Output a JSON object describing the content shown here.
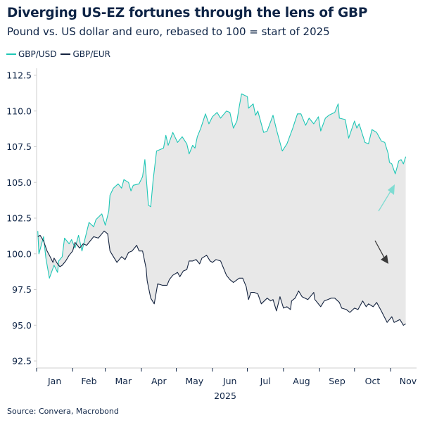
{
  "header": {
    "title": "Diverging US-EZ fortunes through the lens of GBP",
    "subtitle": "Pound vs. US dollar and euro, rebased to 100 = start of 2025"
  },
  "source": "Source: Convera, Macrobond",
  "colors": {
    "gbpusd": "#1fc7b6",
    "gbpeur": "#14233f",
    "fill": "#e8e8e8",
    "text": "#0e2446"
  },
  "chart_data": {
    "type": "line",
    "title": "Diverging US-EZ fortunes through the lens of GBP",
    "subtitle": "Pound vs. US dollar and euro, rebased to 100 = start of 2025",
    "xlabel": "2025",
    "ylabel": "",
    "ylim": [
      92.5,
      112.5
    ],
    "yticks": [
      "92.5",
      "95.0",
      "97.5",
      "100.0",
      "102.5",
      "105.0",
      "107.5",
      "110.0",
      "112.5"
    ],
    "xticks": [
      "Jan",
      "Feb",
      "Mar",
      "Apr",
      "May",
      "Jun",
      "Jul",
      "Aug",
      "Sep",
      "Oct",
      "Nov"
    ],
    "grid": false,
    "legend": "top-left",
    "shaded_between_series": true,
    "annotations": [
      "arrow-up (GBP/USD)",
      "arrow-down (GBP/EUR)"
    ],
    "series": [
      {
        "name": "GBP/USD",
        "color": "#1fc7b6",
        "points": [
          [
            "2025-01-02",
            101.6
          ],
          [
            "2025-01-03",
            100.0
          ],
          [
            "2025-01-07",
            101.2
          ],
          [
            "2025-01-09",
            99.7
          ],
          [
            "2025-01-12",
            98.3
          ],
          [
            "2025-01-16",
            99.2
          ],
          [
            "2025-01-19",
            98.7
          ],
          [
            "2025-01-20",
            99.5
          ],
          [
            "2025-01-23",
            99.8
          ],
          [
            "2025-01-25",
            101.1
          ],
          [
            "2025-01-29",
            100.7
          ],
          [
            "2025-01-31",
            101.0
          ],
          [
            "2025-02-03",
            100.4
          ],
          [
            "2025-02-06",
            101.3
          ],
          [
            "2025-02-09",
            100.2
          ],
          [
            "2025-02-15",
            102.2
          ],
          [
            "2025-02-19",
            101.9
          ],
          [
            "2025-02-21",
            102.4
          ],
          [
            "2025-02-26",
            102.8
          ],
          [
            "2025-03-01",
            102.0
          ],
          [
            "2025-03-04",
            103.0
          ],
          [
            "2025-03-05",
            104.1
          ],
          [
            "2025-03-08",
            104.6
          ],
          [
            "2025-03-12",
            104.9
          ],
          [
            "2025-03-15",
            104.6
          ],
          [
            "2025-03-17",
            105.2
          ],
          [
            "2025-03-21",
            105.0
          ],
          [
            "2025-03-23",
            104.4
          ],
          [
            "2025-03-25",
            104.8
          ],
          [
            "2025-03-30",
            104.9
          ],
          [
            "2025-04-02",
            105.4
          ],
          [
            "2025-04-04",
            106.6
          ],
          [
            "2025-04-07",
            103.4
          ],
          [
            "2025-04-09",
            103.3
          ],
          [
            "2025-04-11",
            105.1
          ],
          [
            "2025-04-14",
            107.2
          ],
          [
            "2025-04-20",
            107.4
          ],
          [
            "2025-04-22",
            108.3
          ],
          [
            "2025-04-24",
            107.6
          ],
          [
            "2025-04-28",
            108.5
          ],
          [
            "2025-05-02",
            107.8
          ],
          [
            "2025-05-06",
            108.2
          ],
          [
            "2025-05-10",
            107.7
          ],
          [
            "2025-05-12",
            107.0
          ],
          [
            "2025-05-15",
            107.6
          ],
          [
            "2025-05-17",
            107.4
          ],
          [
            "2025-05-19",
            108.2
          ],
          [
            "2025-05-22",
            108.8
          ],
          [
            "2025-05-26",
            109.8
          ],
          [
            "2025-05-29",
            109.1
          ],
          [
            "2025-06-01",
            109.6
          ],
          [
            "2025-06-05",
            109.9
          ],
          [
            "2025-06-08",
            109.5
          ],
          [
            "2025-06-13",
            110.0
          ],
          [
            "2025-06-16",
            109.9
          ],
          [
            "2025-06-19",
            108.8
          ],
          [
            "2025-06-22",
            109.3
          ],
          [
            "2025-06-24",
            110.3
          ],
          [
            "2025-06-26",
            111.2
          ],
          [
            "2025-07-01",
            111.0
          ],
          [
            "2025-07-02",
            110.2
          ],
          [
            "2025-07-06",
            110.5
          ],
          [
            "2025-07-08",
            109.7
          ],
          [
            "2025-07-10",
            110.0
          ],
          [
            "2025-07-15",
            108.5
          ],
          [
            "2025-07-18",
            108.6
          ],
          [
            "2025-07-23",
            109.7
          ],
          [
            "2025-07-26",
            108.7
          ],
          [
            "2025-07-31",
            107.2
          ],
          [
            "2025-08-04",
            107.7
          ],
          [
            "2025-08-09",
            108.8
          ],
          [
            "2025-08-13",
            109.8
          ],
          [
            "2025-08-16",
            109.8
          ],
          [
            "2025-08-20",
            109.0
          ],
          [
            "2025-08-23",
            109.5
          ],
          [
            "2025-08-27",
            109.1
          ],
          [
            "2025-08-31",
            109.6
          ],
          [
            "2025-09-02",
            108.6
          ],
          [
            "2025-09-06",
            109.5
          ],
          [
            "2025-09-09",
            109.7
          ],
          [
            "2025-09-14",
            109.9
          ],
          [
            "2025-09-17",
            110.5
          ],
          [
            "2025-09-18",
            109.5
          ],
          [
            "2025-09-23",
            109.4
          ],
          [
            "2025-09-26",
            108.1
          ],
          [
            "2025-10-01",
            109.3
          ],
          [
            "2025-10-03",
            108.8
          ],
          [
            "2025-10-05",
            109.1
          ],
          [
            "2025-10-10",
            107.8
          ],
          [
            "2025-10-13",
            107.7
          ],
          [
            "2025-10-16",
            108.7
          ],
          [
            "2025-10-20",
            108.5
          ],
          [
            "2025-10-24",
            107.9
          ],
          [
            "2025-10-27",
            107.8
          ],
          [
            "2025-10-30",
            107.0
          ],
          [
            "2025-10-31",
            106.4
          ],
          [
            "2025-11-02",
            106.3
          ],
          [
            "2025-11-05",
            105.6
          ],
          [
            "2025-11-08",
            106.5
          ],
          [
            "2025-11-10",
            106.6
          ],
          [
            "2025-11-12",
            106.3
          ],
          [
            "2025-11-14",
            106.8
          ]
        ]
      },
      {
        "name": "GBP/EUR",
        "color": "#14233f",
        "points": [
          [
            "2025-01-02",
            101.2
          ],
          [
            "2025-01-04",
            101.3
          ],
          [
            "2025-01-07",
            100.9
          ],
          [
            "2025-01-10",
            100.2
          ],
          [
            "2025-01-12",
            99.9
          ],
          [
            "2025-01-15",
            99.4
          ],
          [
            "2025-01-16",
            99.7
          ],
          [
            "2025-01-19",
            99.3
          ],
          [
            "2025-01-21",
            99.1
          ],
          [
            "2025-01-23",
            99.2
          ],
          [
            "2025-01-26",
            99.5
          ],
          [
            "2025-01-29",
            99.9
          ],
          [
            "2025-02-01",
            100.2
          ],
          [
            "2025-02-03",
            100.8
          ],
          [
            "2025-02-07",
            100.4
          ],
          [
            "2025-02-10",
            100.7
          ],
          [
            "2025-02-13",
            100.6
          ],
          [
            "2025-02-19",
            101.2
          ],
          [
            "2025-02-23",
            101.1
          ],
          [
            "2025-02-28",
            101.6
          ],
          [
            "2025-03-03",
            101.4
          ],
          [
            "2025-03-05",
            100.2
          ],
          [
            "2025-03-08",
            99.8
          ],
          [
            "2025-03-11",
            99.4
          ],
          [
            "2025-03-15",
            99.8
          ],
          [
            "2025-03-18",
            99.6
          ],
          [
            "2025-03-21",
            100.1
          ],
          [
            "2025-03-24",
            100.2
          ],
          [
            "2025-03-26",
            100.4
          ],
          [
            "2025-03-28",
            100.6
          ],
          [
            "2025-03-30",
            100.2
          ],
          [
            "2025-04-02",
            100.2
          ],
          [
            "2025-04-05",
            99.0
          ],
          [
            "2025-04-06",
            98.1
          ],
          [
            "2025-04-09",
            96.9
          ],
          [
            "2025-04-12",
            96.5
          ],
          [
            "2025-04-15",
            97.9
          ],
          [
            "2025-04-19",
            97.8
          ],
          [
            "2025-04-23",
            97.8
          ],
          [
            "2025-04-25",
            98.2
          ],
          [
            "2025-04-28",
            98.5
          ],
          [
            "2025-05-02",
            98.7
          ],
          [
            "2025-05-04",
            98.4
          ],
          [
            "2025-05-07",
            98.8
          ],
          [
            "2025-05-10",
            98.9
          ],
          [
            "2025-05-12",
            99.5
          ],
          [
            "2025-05-15",
            99.5
          ],
          [
            "2025-05-18",
            99.6
          ],
          [
            "2025-05-21",
            99.3
          ],
          [
            "2025-05-23",
            99.7
          ],
          [
            "2025-05-27",
            99.9
          ],
          [
            "2025-05-30",
            99.5
          ],
          [
            "2025-06-01",
            99.4
          ],
          [
            "2025-06-04",
            99.6
          ],
          [
            "2025-06-08",
            99.5
          ],
          [
            "2025-06-13",
            98.5
          ],
          [
            "2025-06-16",
            98.2
          ],
          [
            "2025-06-19",
            98.0
          ],
          [
            "2025-06-24",
            98.3
          ],
          [
            "2025-06-27",
            98.3
          ],
          [
            "2025-06-30",
            97.7
          ],
          [
            "2025-07-02",
            96.8
          ],
          [
            "2025-07-04",
            97.3
          ],
          [
            "2025-07-07",
            97.3
          ],
          [
            "2025-07-10",
            97.2
          ],
          [
            "2025-07-13",
            96.5
          ],
          [
            "2025-07-18",
            96.9
          ],
          [
            "2025-07-21",
            96.7
          ],
          [
            "2025-07-23",
            96.8
          ],
          [
            "2025-07-26",
            96.0
          ],
          [
            "2025-07-29",
            97.0
          ],
          [
            "2025-08-01",
            96.2
          ],
          [
            "2025-08-04",
            96.3
          ],
          [
            "2025-08-07",
            96.1
          ],
          [
            "2025-08-08",
            96.7
          ],
          [
            "2025-08-11",
            96.9
          ],
          [
            "2025-08-14",
            97.4
          ],
          [
            "2025-08-17",
            97.0
          ],
          [
            "2025-08-22",
            96.8
          ],
          [
            "2025-08-27",
            97.3
          ],
          [
            "2025-08-28",
            96.8
          ],
          [
            "2025-09-02",
            96.3
          ],
          [
            "2025-09-05",
            96.7
          ],
          [
            "2025-09-11",
            96.9
          ],
          [
            "2025-09-14",
            96.9
          ],
          [
            "2025-09-18",
            96.6
          ],
          [
            "2025-09-20",
            96.2
          ],
          [
            "2025-09-24",
            96.1
          ],
          [
            "2025-09-27",
            95.9
          ],
          [
            "2025-10-01",
            96.2
          ],
          [
            "2025-10-04",
            96.1
          ],
          [
            "2025-10-08",
            96.7
          ],
          [
            "2025-10-11",
            96.3
          ],
          [
            "2025-10-13",
            96.5
          ],
          [
            "2025-10-17",
            96.3
          ],
          [
            "2025-10-20",
            96.6
          ],
          [
            "2025-10-24",
            96.0
          ],
          [
            "2025-10-29",
            95.2
          ],
          [
            "2025-11-02",
            95.6
          ],
          [
            "2025-11-04",
            95.2
          ],
          [
            "2025-11-09",
            95.4
          ],
          [
            "2025-11-12",
            95.0
          ],
          [
            "2025-11-14",
            95.1
          ]
        ]
      }
    ]
  }
}
